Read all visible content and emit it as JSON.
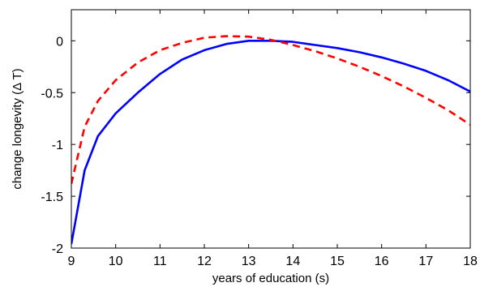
{
  "chart_data": {
    "type": "line",
    "title": "",
    "xlabel": "years of education  (s)",
    "ylabel": "change longevity (Δ T)",
    "xlim": [
      9,
      18
    ],
    "ylim": [
      -2,
      0.3
    ],
    "xticks": [
      9,
      10,
      11,
      12,
      13,
      14,
      15,
      16,
      17,
      18
    ],
    "yticks": [
      0,
      -0.5,
      -1,
      -1.5,
      -2
    ],
    "ytick_labels": [
      "0",
      "-0.5",
      "-1",
      "-1.5",
      "-2"
    ],
    "grid": false,
    "legend": "none",
    "series": [
      {
        "style": "solid",
        "color": "#0000ff",
        "x": [
          9.0,
          9.3,
          9.6,
          10.0,
          10.5,
          11.0,
          11.5,
          12.0,
          12.5,
          13.0,
          13.5,
          14.0,
          14.5,
          15.0,
          15.5,
          16.0,
          16.5,
          17.0,
          17.5,
          18.0
        ],
        "y": [
          -1.96,
          -1.25,
          -0.92,
          -0.7,
          -0.5,
          -0.32,
          -0.18,
          -0.09,
          -0.03,
          0.0,
          0.0,
          -0.01,
          -0.04,
          -0.07,
          -0.11,
          -0.16,
          -0.22,
          -0.29,
          -0.38,
          -0.49
        ]
      },
      {
        "style": "dashed",
        "color": "#ff0000",
        "x": [
          9.0,
          9.3,
          9.6,
          10.0,
          10.5,
          11.0,
          11.5,
          12.0,
          12.5,
          13.0,
          13.5,
          14.0,
          14.5,
          15.0,
          15.5,
          16.0,
          16.5,
          17.0,
          17.5,
          18.0
        ],
        "y": [
          -1.38,
          -0.83,
          -0.58,
          -0.38,
          -0.21,
          -0.09,
          -0.02,
          0.03,
          0.045,
          0.04,
          0.01,
          -0.04,
          -0.1,
          -0.17,
          -0.25,
          -0.34,
          -0.44,
          -0.55,
          -0.67,
          -0.81
        ]
      }
    ]
  }
}
